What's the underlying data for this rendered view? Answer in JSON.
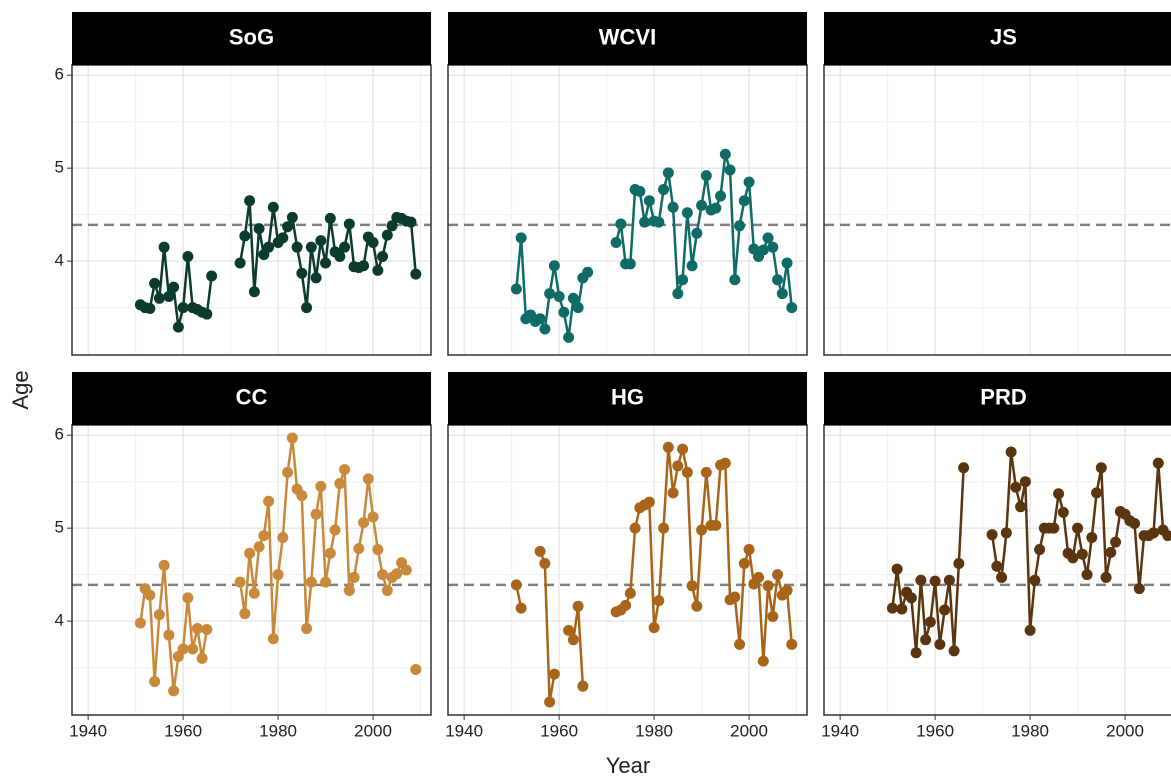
{
  "chart_data": {
    "type": "line",
    "xlabel": "Year",
    "ylabel": "Age",
    "x": [
      1951,
      1952,
      1953,
      1954,
      1955,
      1956,
      1957,
      1958,
      1959,
      1960,
      1961,
      1962,
      1963,
      1964,
      1965,
      1966,
      1967,
      1968,
      1969,
      1970,
      1971,
      1972,
      1973,
      1974,
      1975,
      1976,
      1977,
      1978,
      1979,
      1980,
      1981,
      1982,
      1983,
      1984,
      1985,
      1986,
      1987,
      1988,
      1989,
      1990,
      1991,
      1992,
      1993,
      1994,
      1995,
      1996,
      1997,
      1998,
      1999,
      2000,
      2001,
      2002,
      2003,
      2004,
      2005,
      2006,
      2007,
      2008,
      2009
    ],
    "xlim": [
      1936.6,
      2012.2
    ],
    "xticks": [
      1940,
      1960,
      1980,
      2000
    ],
    "ylim": [
      2.99,
      6.11
    ],
    "yticks": [
      4,
      5,
      6
    ],
    "hline": 4.39,
    "grid": true,
    "series": [
      {
        "name": "SoG",
        "color": "#0b3b2e",
        "values": [
          3.53,
          3.5,
          3.49,
          3.76,
          3.6,
          4.15,
          3.62,
          3.72,
          3.29,
          3.5,
          4.05,
          3.5,
          3.48,
          3.45,
          3.43,
          3.84,
          null,
          null,
          null,
          null,
          null,
          3.98,
          4.27,
          4.65,
          3.67,
          4.35,
          4.07,
          4.15,
          4.58,
          4.2,
          4.25,
          4.37,
          4.47,
          4.15,
          3.87,
          3.5,
          4.15,
          3.82,
          4.22,
          3.98,
          4.46,
          4.1,
          4.05,
          4.15,
          4.4,
          3.94,
          3.93,
          3.95,
          4.26,
          4.2,
          3.9,
          4.05,
          4.28,
          4.38,
          4.47,
          4.46,
          4.43,
          4.42,
          3.86
        ]
      },
      {
        "name": "WCVI",
        "color": "#0f6b66",
        "values": [
          3.7,
          4.25,
          3.38,
          3.42,
          3.35,
          3.38,
          3.27,
          3.65,
          3.95,
          3.62,
          3.45,
          3.18,
          3.6,
          3.5,
          3.82,
          3.88,
          null,
          null,
          null,
          null,
          null,
          4.2,
          4.4,
          3.97,
          3.97,
          4.77,
          4.75,
          4.42,
          4.65,
          4.43,
          4.42,
          4.77,
          4.95,
          4.58,
          3.65,
          3.8,
          4.52,
          3.95,
          4.3,
          4.6,
          4.92,
          4.55,
          4.57,
          4.7,
          5.15,
          4.98,
          3.8,
          4.38,
          4.65,
          4.85,
          4.13,
          4.05,
          4.12,
          4.25,
          4.15,
          3.8,
          3.65,
          3.98,
          3.5
        ]
      },
      {
        "name": "JS",
        "values": [
          null,
          null,
          null,
          null,
          null,
          null,
          null,
          null,
          null,
          null,
          null,
          null,
          null,
          null,
          null,
          null,
          null,
          null,
          null,
          null,
          null,
          null,
          null,
          null,
          null,
          null,
          null,
          null,
          null,
          null,
          null,
          null,
          null,
          null,
          null,
          null,
          null,
          null,
          null,
          null,
          null,
          null,
          null,
          null,
          null,
          null,
          null,
          null,
          null,
          null,
          null,
          null,
          null,
          null,
          null,
          null,
          null,
          null,
          null
        ]
      },
      {
        "name": "CC",
        "color": "#c8893a",
        "values": [
          3.98,
          4.35,
          4.28,
          3.35,
          4.07,
          4.6,
          3.85,
          3.25,
          3.62,
          3.7,
          4.25,
          3.7,
          3.92,
          3.6,
          3.91,
          null,
          null,
          null,
          null,
          null,
          null,
          4.42,
          4.08,
          4.73,
          4.3,
          4.8,
          4.92,
          5.29,
          3.81,
          4.5,
          4.9,
          5.6,
          5.97,
          5.42,
          5.35,
          3.92,
          4.42,
          5.15,
          5.45,
          4.42,
          4.73,
          4.98,
          5.48,
          5.63,
          4.33,
          4.47,
          4.78,
          5.06,
          5.53,
          5.12,
          4.77,
          4.5,
          4.33,
          4.47,
          4.51,
          4.63,
          4.55,
          null,
          3.48
        ]
      },
      {
        "name": "HG",
        "color": "#a8651a",
        "values": [
          4.39,
          4.14,
          null,
          null,
          null,
          4.75,
          4.62,
          3.13,
          3.43,
          null,
          null,
          3.9,
          3.8,
          4.16,
          3.3,
          null,
          null,
          null,
          null,
          null,
          null,
          4.1,
          4.12,
          4.17,
          4.3,
          5.0,
          5.22,
          5.25,
          5.28,
          3.93,
          4.22,
          5.0,
          5.87,
          5.38,
          5.67,
          5.85,
          5.6,
          4.38,
          4.16,
          4.98,
          5.6,
          5.03,
          5.03,
          5.68,
          5.7,
          4.23,
          4.26,
          3.75,
          4.62,
          4.77,
          4.4,
          4.47,
          3.57,
          4.38,
          4.05,
          4.5,
          4.28,
          4.33,
          3.75
        ]
      },
      {
        "name": "PRD",
        "color": "#5a3510",
        "values": [
          4.14,
          4.56,
          4.13,
          4.31,
          4.25,
          3.66,
          4.44,
          3.8,
          3.99,
          4.43,
          3.75,
          4.12,
          4.44,
          3.68,
          4.62,
          5.65,
          null,
          null,
          null,
          null,
          null,
          4.93,
          4.59,
          4.47,
          4.95,
          5.82,
          5.44,
          5.23,
          5.5,
          3.9,
          4.44,
          4.77,
          5.0,
          5.0,
          5.0,
          5.37,
          5.17,
          4.73,
          4.68,
          5.0,
          4.72,
          4.5,
          4.9,
          5.38,
          5.65,
          4.47,
          4.74,
          4.85,
          5.18,
          5.15,
          5.08,
          5.05,
          4.35,
          4.92,
          4.92,
          4.95,
          5.7,
          4.98,
          4.92
        ]
      }
    ]
  }
}
